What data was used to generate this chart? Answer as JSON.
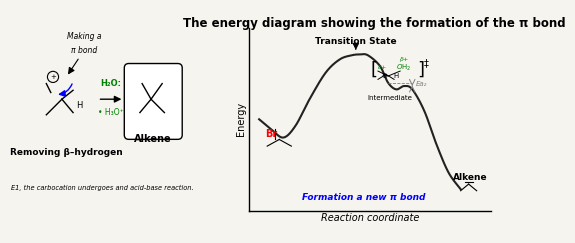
{
  "title": "The energy diagram showing the formation of the π bond",
  "title_fontsize": 8.5,
  "xlabel": "Reaction coordinate",
  "ylabel": "Energy",
  "curve_color": "#222222",
  "background_color": "#f5f4ef",
  "ts_label": "Transition State",
  "intermediate_label": "Intermediate",
  "alkene_label": "Alkene",
  "formation_label": "Formation a new π bond",
  "ea2_label": "Ea₂",
  "making_pi_text1": "Making a",
  "making_pi_text2": "π bond",
  "removing_text": "Removing β–hydrogen",
  "e1_text": "E1, the carbocation undergoes and acid-base reaction.",
  "h2o_text": "H₂O:",
  "h3o_text": "• H₃O⁺",
  "alkene_label2": "Alkene",
  "curve_x": [
    0.0,
    0.06,
    0.12,
    0.18,
    0.25,
    0.33,
    0.4,
    0.46,
    0.5,
    0.54,
    0.6,
    0.64,
    0.68,
    0.72,
    0.76,
    0.82,
    0.88,
    0.94,
    1.0
  ],
  "curve_y": [
    0.6,
    0.54,
    0.49,
    0.56,
    0.72,
    0.88,
    0.96,
    0.985,
    0.99,
    0.985,
    0.92,
    0.82,
    0.78,
    0.8,
    0.78,
    0.65,
    0.45,
    0.28,
    0.18
  ]
}
